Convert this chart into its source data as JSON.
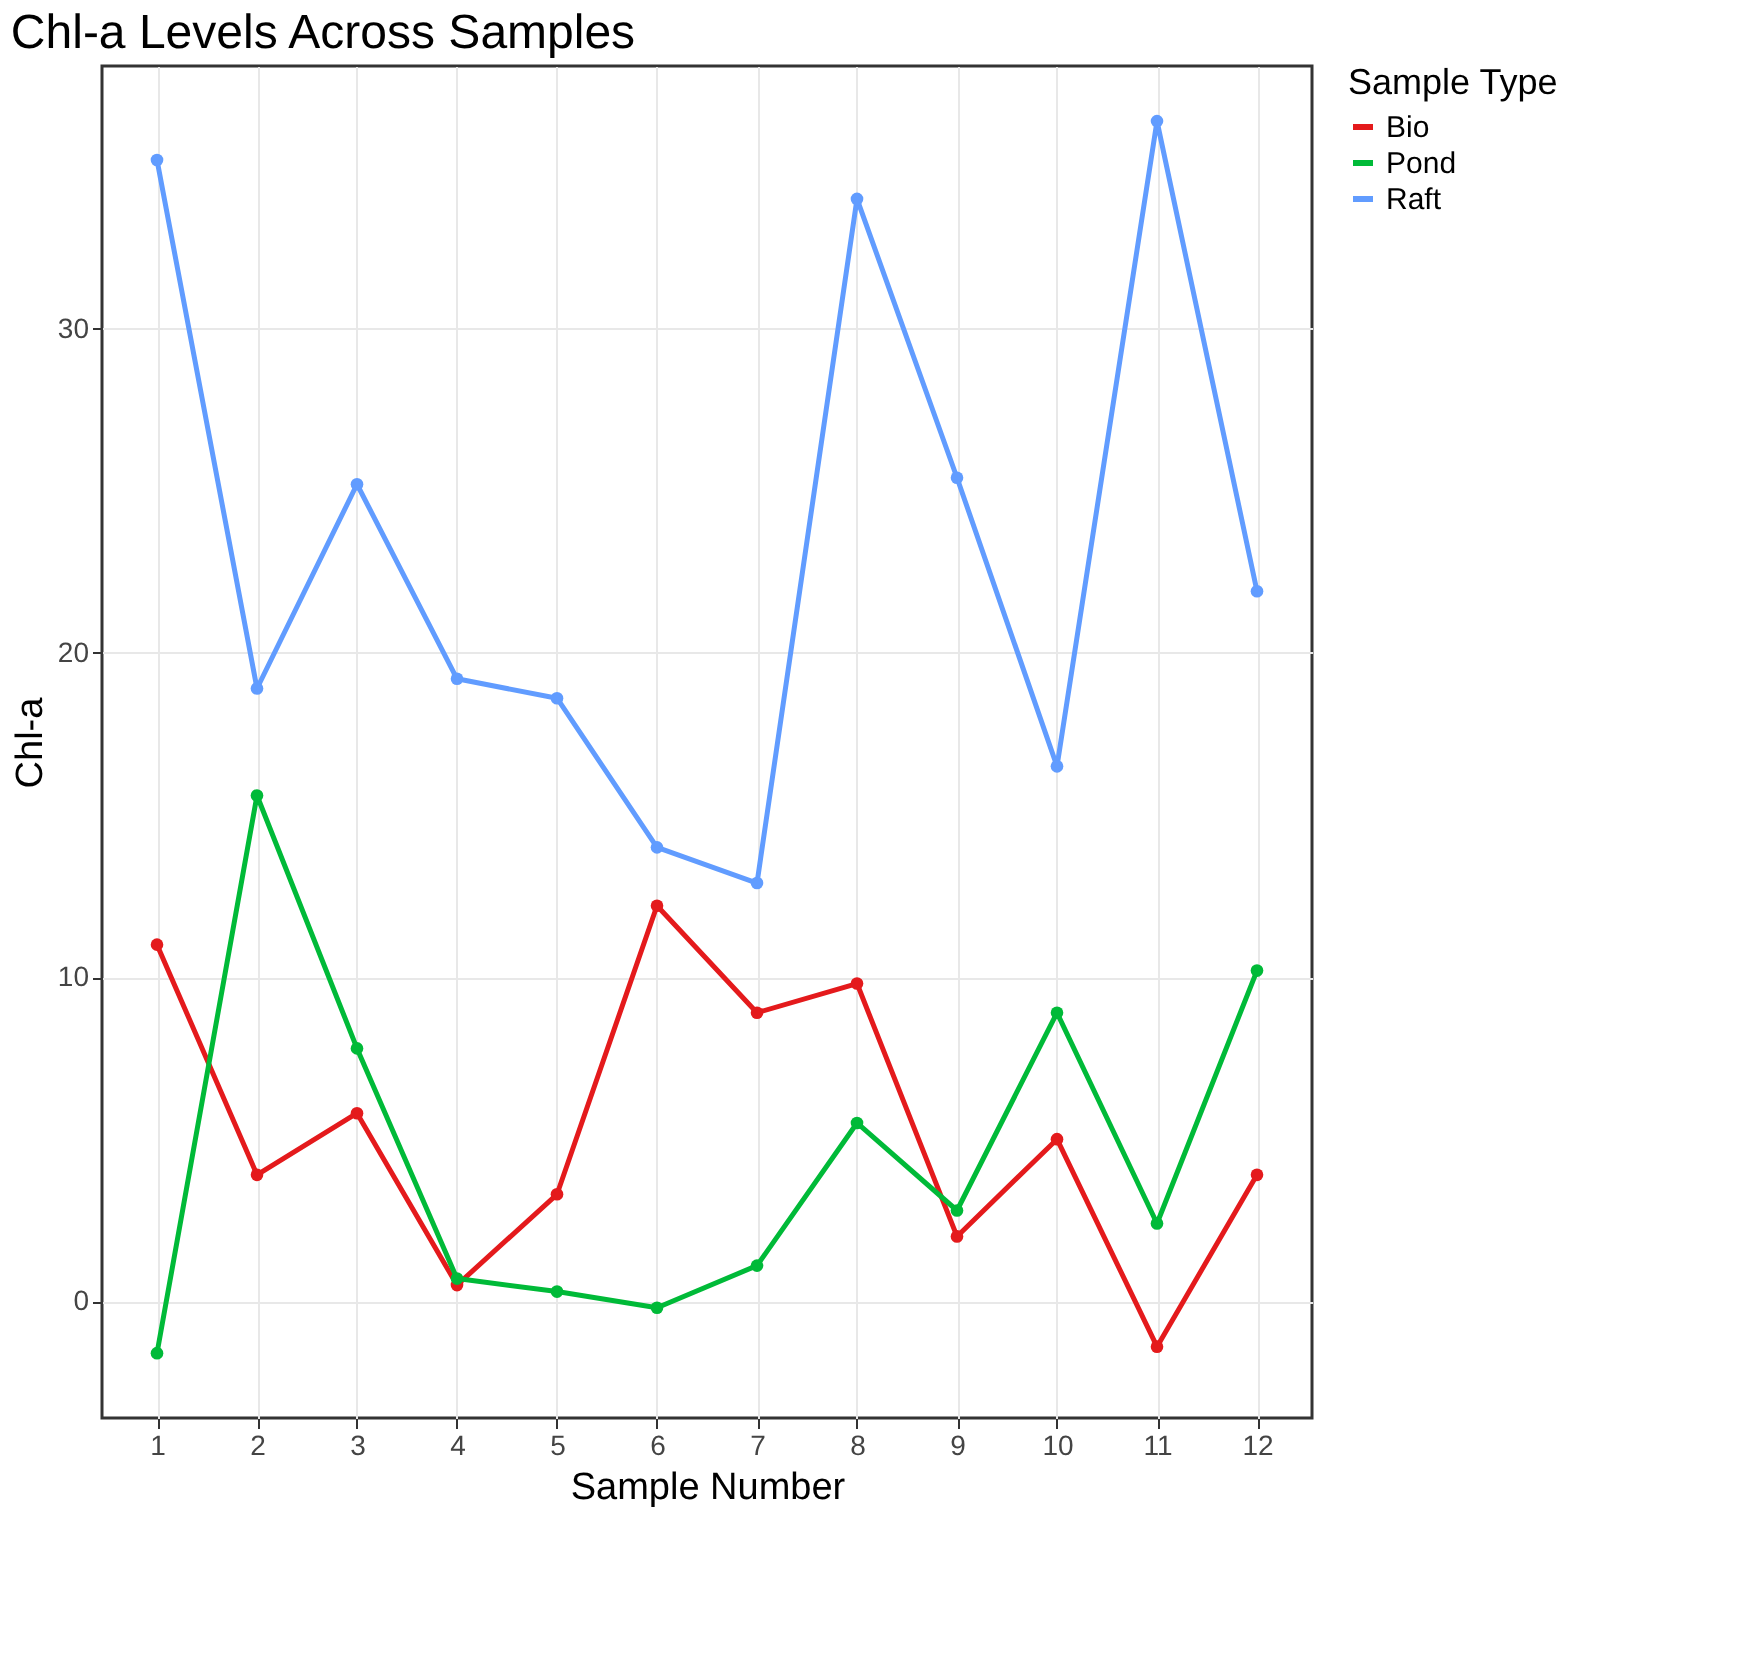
{
  "chart_data": {
    "type": "line",
    "title": "Chl-a Levels Across Samples",
    "xlabel": "Sample Number",
    "ylabel": "Chl-a",
    "legend_title": "Sample Type",
    "x": [
      1,
      2,
      3,
      4,
      5,
      6,
      7,
      8,
      9,
      10,
      11,
      12
    ],
    "series": [
      {
        "name": "Bio",
        "color": "#e41a1c",
        "values": [
          11.0,
          3.9,
          5.8,
          0.5,
          3.3,
          12.2,
          8.9,
          9.8,
          2.0,
          5.0,
          -1.4,
          3.9
        ]
      },
      {
        "name": "Pond",
        "color": "#00ba38",
        "values": [
          -1.6,
          15.6,
          7.8,
          0.7,
          0.3,
          -0.2,
          1.1,
          5.5,
          2.8,
          8.9,
          2.4,
          10.2
        ]
      },
      {
        "name": "Raft",
        "color": "#619cff",
        "values": [
          35.2,
          18.9,
          25.2,
          19.2,
          18.6,
          14.0,
          12.9,
          34.0,
          25.4,
          16.5,
          36.4,
          21.9
        ]
      }
    ],
    "xlim": [
      0.45,
      12.55
    ],
    "xticks": [
      1,
      2,
      3,
      4,
      5,
      6,
      7,
      8,
      9,
      10,
      11,
      12
    ],
    "ylim": [
      -3.6,
      38.1
    ],
    "yticks": [
      0,
      10,
      20,
      30
    ],
    "grid": true,
    "legend": "right",
    "marker": "circle",
    "line_style": "solid"
  }
}
